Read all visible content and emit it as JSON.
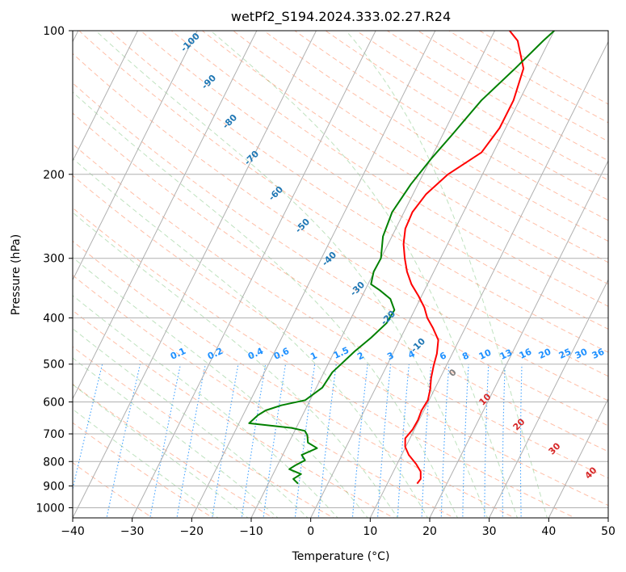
{
  "chart_data": {
    "type": "line",
    "title": "wetPf2_S194.2024.333.02.27.R24",
    "xlabel": "Temperature (°C)",
    "ylabel": "Pressure (hPa)",
    "xlim": [
      -40,
      50
    ],
    "ylim": [
      1050,
      100
    ],
    "y_scale": "log",
    "x_ticks": [
      "−40",
      "−30",
      "−20",
      "−10",
      "0",
      "10",
      "20",
      "30",
      "40",
      "50"
    ],
    "y_ticks": [
      "100",
      "200",
      "300",
      "400",
      "500",
      "600",
      "700",
      "800",
      "900",
      "1000"
    ],
    "grid": true,
    "series": [
      {
        "color": "#ff0000",
        "points": [
          [
            15.0,
            890
          ],
          [
            15.2,
            870
          ],
          [
            14.6,
            840
          ],
          [
            13.2,
            810
          ],
          [
            11.2,
            775
          ],
          [
            9.9,
            745
          ],
          [
            9.2,
            715
          ],
          [
            9.7,
            685
          ],
          [
            9.8,
            655
          ],
          [
            9.6,
            625
          ],
          [
            9.8,
            595
          ],
          [
            9.3,
            565
          ],
          [
            8.5,
            535
          ],
          [
            7.9,
            505
          ],
          [
            7.4,
            475
          ],
          [
            6.5,
            445
          ],
          [
            4.6,
            420
          ],
          [
            2.8,
            400
          ],
          [
            1.4,
            380
          ],
          [
            -0.5,
            360
          ],
          [
            -2.7,
            340
          ],
          [
            -4.5,
            320
          ],
          [
            -6.0,
            300
          ],
          [
            -7.4,
            280
          ],
          [
            -8.4,
            260
          ],
          [
            -8.6,
            240
          ],
          [
            -7.8,
            220
          ],
          [
            -5.8,
            200
          ],
          [
            -2.0,
            180
          ],
          [
            -1.0,
            160
          ],
          [
            -1.0,
            140
          ],
          [
            -2.0,
            120
          ],
          [
            -5.3,
            105
          ],
          [
            -7.5,
            100
          ]
        ]
      },
      {
        "color": "#008000",
        "points": [
          [
            -5.0,
            890
          ],
          [
            -6.2,
            870
          ],
          [
            -5.3,
            850
          ],
          [
            -7.7,
            830
          ],
          [
            -7.0,
            815
          ],
          [
            -5.8,
            795
          ],
          [
            -6.8,
            775
          ],
          [
            -4.8,
            750
          ],
          [
            -6.8,
            730
          ],
          [
            -7.5,
            705
          ],
          [
            -8.3,
            690
          ],
          [
            -10.8,
            680
          ],
          [
            -18.3,
            665
          ],
          [
            -17.5,
            640
          ],
          [
            -16.6,
            625
          ],
          [
            -14.4,
            610
          ],
          [
            -10.8,
            595
          ],
          [
            -9.0,
            560
          ],
          [
            -8.6,
            520
          ],
          [
            -7.8,
            500
          ],
          [
            -6.6,
            470
          ],
          [
            -5.0,
            440
          ],
          [
            -3.6,
            410
          ],
          [
            -3.4,
            385
          ],
          [
            -5.0,
            365
          ],
          [
            -7.5,
            350
          ],
          [
            -9.5,
            340
          ],
          [
            -10.1,
            320
          ],
          [
            -10.0,
            300
          ],
          [
            -11.5,
            270
          ],
          [
            -12.0,
            240
          ],
          [
            -11.2,
            210
          ],
          [
            -9.9,
            185
          ],
          [
            -8.4,
            165
          ],
          [
            -6.4,
            140
          ],
          [
            -3.4,
            120
          ],
          [
            -1.0,
            105
          ],
          [
            0.0,
            100
          ]
        ]
      }
    ],
    "dry_adiabats": {
      "color": "#ff4500",
      "labels": []
    },
    "moist_adiabats": {
      "color": "#1f77b4",
      "labels": [
        "-100",
        "-90",
        "-80",
        "-70",
        "-60",
        "-50",
        "-40",
        "-30",
        "-20",
        "-10"
      ]
    },
    "mixing_ratio": {
      "color": "#1e90ff",
      "labels": [
        "0.1",
        "0.2",
        "0.4",
        "0.6",
        "1",
        "1.5",
        "2",
        "3",
        "4",
        "6",
        "8",
        "10",
        "13",
        "16",
        "20",
        "25",
        "30",
        "36"
      ]
    },
    "isotherm_labels": {
      "color": "#d62728",
      "labels": [
        "0",
        "10",
        "20",
        "30",
        "40"
      ]
    }
  }
}
